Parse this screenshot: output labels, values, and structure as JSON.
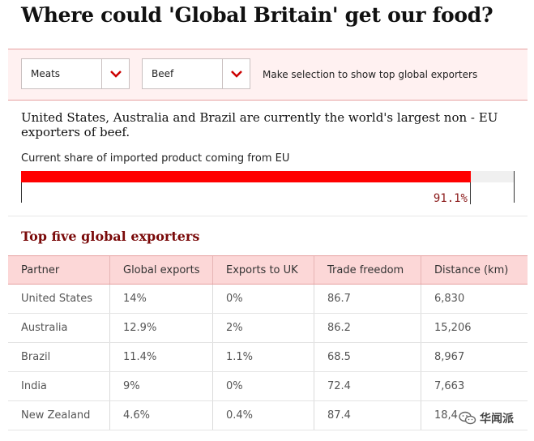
{
  "title": "Where could 'Global Britain' get our food?",
  "controls": {
    "category": "Meats",
    "product": "Beef",
    "hint": "Make selection to show top global exporters"
  },
  "summary": "United States, Australia and Brazil are currently the world's largest non - EU exporters of beef.",
  "share": {
    "label": "Current share of imported product coming from EU",
    "value": 91.1,
    "value_label": "91.1%"
  },
  "exporters": {
    "title": "Top five global exporters",
    "columns": [
      "Partner",
      "Global exports",
      "Exports to UK",
      "Trade freedom",
      "Distance (km)"
    ],
    "rows": [
      [
        "United States",
        "14%",
        "0%",
        "86.7",
        "6,830"
      ],
      [
        "Australia",
        "12.9%",
        "2%",
        "86.2",
        "15,206"
      ],
      [
        "Brazil",
        "11.4%",
        "1.1%",
        "68.5",
        "8,967"
      ],
      [
        "India",
        "9%",
        "0%",
        "72.4",
        "7,663"
      ],
      [
        "New Zealand",
        "4.6%",
        "0.4%",
        "87.4",
        "18,4"
      ]
    ]
  },
  "watermark": {
    "text": "华闻派",
    "icon": "wechat-icon"
  },
  "colors": {
    "accent": "#ff0000",
    "header_bg": "#fcd7d7",
    "panel_bg": "#fff1f1",
    "section_title": "#7a0a0a"
  }
}
